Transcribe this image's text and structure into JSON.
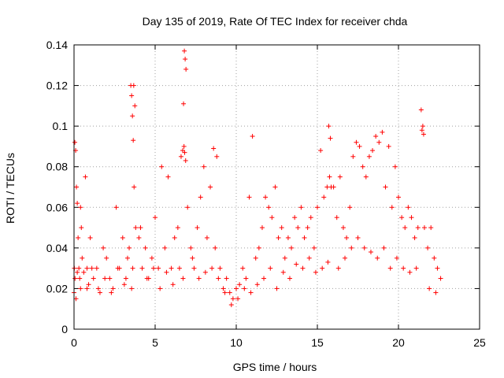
{
  "chart_data": {
    "type": "scatter",
    "title": "Day 135 of 2019, Rate Of TEC Index for receiver chda",
    "xlabel": "GPS time / hours",
    "ylabel": "ROTI / TECUs",
    "xlim": [
      0,
      25
    ],
    "ylim": [
      0,
      0.14
    ],
    "x_ticks": [
      0,
      5,
      10,
      15,
      20,
      25
    ],
    "y_ticks": [
      0,
      0.02,
      0.04,
      0.06,
      0.08,
      0.1,
      0.12,
      0.14
    ],
    "x_tick_labels": [
      "0",
      "5",
      "10",
      "15",
      "20",
      "25"
    ],
    "y_tick_labels": [
      "0",
      "0.02",
      "0.04",
      "0.06",
      "0.08",
      "0.1",
      "0.12",
      "0.14"
    ],
    "grid": true,
    "marker": "+",
    "color": "#ff0000",
    "series": [
      {
        "x": [
          0.0,
          0.05,
          0.1,
          0.15,
          0.2,
          0.25,
          0.3,
          0.35,
          0.4,
          0.45,
          0.5,
          0.6,
          0.7,
          0.8,
          0.9,
          1.0,
          1.2,
          1.4,
          1.6,
          1.8,
          2.0,
          2.2,
          2.4,
          2.6,
          2.8,
          3.0,
          3.2,
          3.4,
          3.5,
          3.55,
          3.6,
          3.65,
          3.7,
          3.8,
          4.0,
          4.2,
          4.4,
          4.6,
          4.8,
          5.0,
          5.2,
          5.4,
          5.6,
          5.8,
          6.0,
          6.2,
          6.4,
          6.6,
          6.7,
          6.75,
          6.8,
          6.85,
          6.9,
          7.0,
          7.2,
          7.4,
          7.6,
          7.8,
          8.0,
          8.2,
          8.4,
          8.6,
          8.8,
          9.0,
          9.2,
          9.4,
          9.6,
          9.8,
          10.0,
          10.2,
          10.4,
          10.6,
          10.8,
          11.0,
          11.2,
          11.4,
          11.6,
          11.8,
          12.0,
          12.2,
          12.4,
          12.6,
          12.8,
          13.0,
          13.2,
          13.4,
          13.6,
          13.8,
          14.0,
          14.2,
          14.4,
          14.6,
          14.8,
          15.0,
          15.2,
          15.4,
          15.6,
          15.7,
          15.8,
          16.0,
          16.2,
          16.4,
          16.6,
          16.8,
          17.0,
          17.2,
          17.4,
          17.6,
          17.8,
          18.0,
          18.2,
          18.4,
          18.6,
          18.8,
          19.0,
          19.2,
          19.4,
          19.6,
          19.8,
          20.0,
          20.2,
          20.4,
          20.6,
          20.8,
          21.0,
          21.2,
          21.4,
          21.5,
          21.6,
          21.8,
          22.0,
          22.2,
          22.4,
          22.6,
          0.02,
          0.06,
          0.12,
          0.2,
          0.4,
          0.8,
          1.1,
          1.5,
          1.9,
          2.3,
          2.7,
          3.1,
          3.3,
          3.55,
          3.62,
          3.68,
          3.75,
          4.1,
          4.5,
          4.9,
          5.3,
          5.7,
          6.1,
          6.5,
          6.72,
          6.78,
          6.82,
          6.88,
          7.3,
          7.7,
          8.1,
          8.5,
          8.7,
          8.9,
          9.3,
          9.7,
          10.1,
          10.5,
          10.9,
          11.3,
          11.7,
          12.1,
          12.5,
          12.9,
          13.3,
          13.7,
          14.1,
          14.5,
          14.9,
          15.3,
          15.65,
          15.75,
          15.85,
          16.3,
          16.7,
          17.1,
          17.5,
          17.9,
          18.3,
          18.7,
          19.1,
          19.5,
          19.9,
          20.3,
          20.7,
          21.1,
          21.45,
          21.55,
          21.9,
          22.3
        ],
        "y": [
          0.018,
          0.092,
          0.088,
          0.07,
          0.062,
          0.045,
          0.03,
          0.025,
          0.02,
          0.05,
          0.035,
          0.028,
          0.075,
          0.03,
          0.022,
          0.045,
          0.025,
          0.03,
          0.018,
          0.04,
          0.035,
          0.025,
          0.02,
          0.06,
          0.03,
          0.045,
          0.025,
          0.04,
          0.12,
          0.115,
          0.105,
          0.093,
          0.07,
          0.05,
          0.045,
          0.03,
          0.04,
          0.025,
          0.035,
          0.055,
          0.03,
          0.08,
          0.04,
          0.075,
          0.03,
          0.045,
          0.05,
          0.085,
          0.088,
          0.111,
          0.137,
          0.133,
          0.128,
          0.06,
          0.04,
          0.03,
          0.05,
          0.065,
          0.08,
          0.045,
          0.07,
          0.089,
          0.085,
          0.03,
          0.02,
          0.025,
          0.018,
          0.015,
          0.02,
          0.022,
          0.03,
          0.025,
          0.065,
          0.095,
          0.035,
          0.04,
          0.05,
          0.065,
          0.06,
          0.055,
          0.07,
          0.045,
          0.05,
          0.035,
          0.045,
          0.04,
          0.055,
          0.05,
          0.06,
          0.045,
          0.05,
          0.055,
          0.04,
          0.06,
          0.088,
          0.065,
          0.07,
          0.1,
          0.094,
          0.07,
          0.055,
          0.075,
          0.05,
          0.045,
          0.06,
          0.085,
          0.092,
          0.09,
          0.08,
          0.075,
          0.085,
          0.088,
          0.095,
          0.092,
          0.097,
          0.07,
          0.09,
          0.06,
          0.08,
          0.065,
          0.055,
          0.05,
          0.06,
          0.055,
          0.045,
          0.05,
          0.108,
          0.1,
          0.05,
          0.04,
          0.05,
          0.035,
          0.03,
          0.025,
          0.03,
          0.025,
          0.015,
          0.028,
          0.06,
          0.02,
          0.03,
          0.02,
          0.025,
          0.018,
          0.03,
          0.022,
          0.035,
          0.02,
          0.03,
          0.12,
          0.11,
          0.05,
          0.025,
          0.03,
          0.02,
          0.028,
          0.022,
          0.03,
          0.025,
          0.09,
          0.087,
          0.083,
          0.035,
          0.025,
          0.028,
          0.03,
          0.04,
          0.025,
          0.018,
          0.012,
          0.015,
          0.02,
          0.018,
          0.022,
          0.025,
          0.03,
          0.02,
          0.028,
          0.025,
          0.032,
          0.03,
          0.035,
          0.028,
          0.03,
          0.033,
          0.075,
          0.07,
          0.03,
          0.035,
          0.04,
          0.045,
          0.04,
          0.038,
          0.035,
          0.04,
          0.03,
          0.035,
          0.03,
          0.028,
          0.03,
          0.098,
          0.096,
          0.02,
          0.018
        ]
      }
    ]
  }
}
